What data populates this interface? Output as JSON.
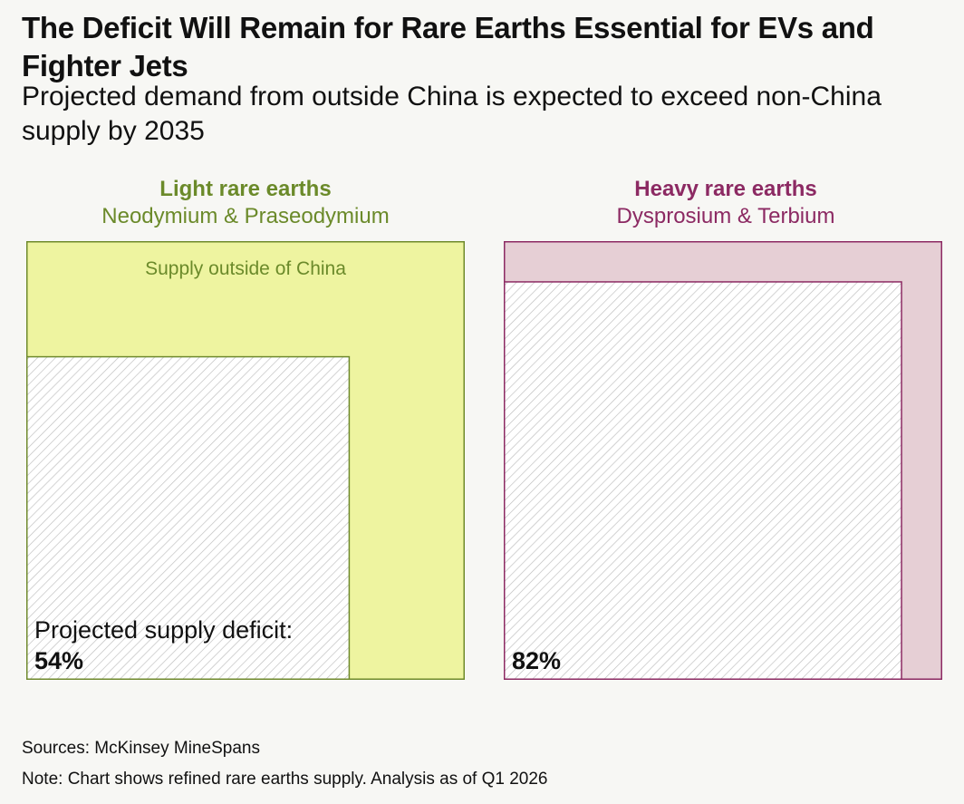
{
  "title": "The Deficit Will Remain for Rare Earths Essential for EVs and Fighter Jets",
  "subtitle": "Projected demand from outside China is expected to exceed non-China supply by 2035",
  "chart_data": [
    {
      "type": "area",
      "title": "Light rare earths",
      "subtitle": "Neodymium & Praseodymium",
      "supply_label": "Supply outside of China",
      "deficit_label": "Projected supply deficit:",
      "deficit_value_label": "54%",
      "deficit_fraction": 0.54,
      "colors": {
        "supply": "#eef4a0",
        "border": "#6f8a2c",
        "title": "#6b8a2a",
        "hatch": "#bdbdbd"
      }
    },
    {
      "type": "area",
      "title": "Heavy rare earths",
      "subtitle": "Dysprosium & Terbium",
      "supply_label": "",
      "deficit_label": "",
      "deficit_value_label": "82%",
      "deficit_fraction": 0.82,
      "colors": {
        "supply": "#e6cfd5",
        "border": "#8c2a63",
        "title": "#8c2a63",
        "hatch": "#bdbdbd"
      }
    }
  ],
  "footer": {
    "sources": "Sources: McKinsey MineSpans",
    "note": "Note: Chart shows refined rare earths supply. Analysis as of Q1 2026"
  }
}
